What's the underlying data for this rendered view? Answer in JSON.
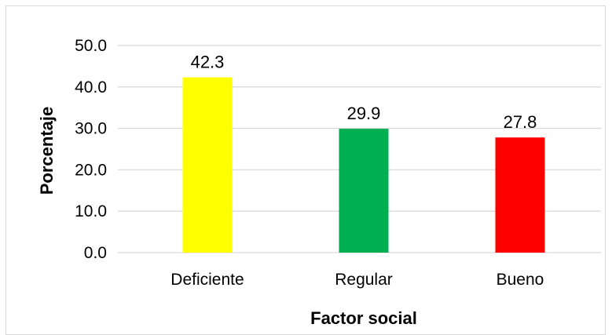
{
  "chart_data": {
    "type": "bar",
    "categories": [
      "Deficiente",
      "Regular",
      "Bueno"
    ],
    "values": [
      42.3,
      29.9,
      27.8
    ],
    "value_labels": [
      "42.3",
      "29.9",
      "27.8"
    ],
    "colors": [
      "#ffff00",
      "#00b050",
      "#ff0000"
    ],
    "xlabel": "Factor social",
    "ylabel": "Porcentaje",
    "ylim": [
      0,
      50
    ],
    "yticks": [
      "0.0",
      "10.0",
      "20.0",
      "30.0",
      "40.0",
      "50.0"
    ],
    "grid": true,
    "legend": "none"
  }
}
